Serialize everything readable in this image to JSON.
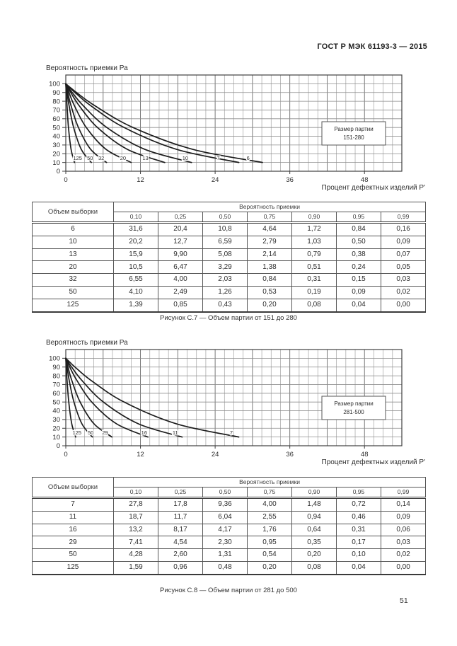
{
  "page": {
    "header": "ГОСТ Р МЭК 61193-3 — 2015",
    "page_number": "51"
  },
  "chart_data": [
    {
      "type": "line",
      "title": "",
      "ylabel": "Вероятность приемки Ра",
      "xlabel": "Процент дефектных изделий Р'",
      "xlim": [
        0,
        54
      ],
      "ylim": [
        0,
        110
      ],
      "x_ticks": [
        0,
        12,
        24,
        36,
        48
      ],
      "y_ticks": [
        0,
        10,
        20,
        30,
        40,
        50,
        60,
        70,
        80,
        90,
        100
      ],
      "x_minor_step": 1.5,
      "y_grid_step": 10,
      "grid": "on",
      "legend": {
        "line1": "Размер партии",
        "line2": "151-280"
      },
      "note": "Operating characteristic curves: x = percent defective P' at given acceptance probability, y = acceptance probability Pa (%); curve name = sample size",
      "series": [
        {
          "name": "125",
          "label_x": 1.9,
          "points": [
            [
              0,
              100
            ],
            [
              0.0,
              99
            ],
            [
              0.04,
              95
            ],
            [
              0.08,
              90
            ],
            [
              0.2,
              75
            ],
            [
              0.43,
              50
            ],
            [
              0.85,
              25
            ],
            [
              1.39,
              10
            ]
          ]
        },
        {
          "name": "50",
          "label_x": 3.9,
          "points": [
            [
              0,
              100
            ],
            [
              0.02,
              99
            ],
            [
              0.09,
              95
            ],
            [
              0.19,
              90
            ],
            [
              0.53,
              75
            ],
            [
              1.26,
              50
            ],
            [
              2.49,
              25
            ],
            [
              4.1,
              10
            ]
          ]
        },
        {
          "name": "32",
          "label_x": 5.7,
          "points": [
            [
              0,
              100
            ],
            [
              0.03,
              99
            ],
            [
              0.15,
              95
            ],
            [
              0.31,
              90
            ],
            [
              0.84,
              75
            ],
            [
              2.03,
              50
            ],
            [
              4.0,
              25
            ],
            [
              6.55,
              10
            ]
          ]
        },
        {
          "name": "20",
          "label_x": 9.2,
          "points": [
            [
              0,
              100
            ],
            [
              0.05,
              99
            ],
            [
              0.24,
              95
            ],
            [
              0.51,
              90
            ],
            [
              1.38,
              75
            ],
            [
              3.29,
              50
            ],
            [
              6.47,
              25
            ],
            [
              10.5,
              10
            ]
          ]
        },
        {
          "name": "13",
          "label_x": 12.8,
          "points": [
            [
              0,
              100
            ],
            [
              0.07,
              99
            ],
            [
              0.38,
              95
            ],
            [
              0.79,
              90
            ],
            [
              2.14,
              75
            ],
            [
              5.08,
              50
            ],
            [
              9.9,
              25
            ],
            [
              15.9,
              10
            ]
          ]
        },
        {
          "name": "10",
          "label_x": 19.2,
          "points": [
            [
              0,
              100
            ],
            [
              0.09,
              99
            ],
            [
              0.5,
              95
            ],
            [
              1.03,
              90
            ],
            [
              2.79,
              75
            ],
            [
              6.59,
              50
            ],
            [
              12.7,
              25
            ],
            [
              20.2,
              10
            ]
          ]
        },
        {
          "name": "7",
          "label_x": 24.5,
          "points": [
            [
              0,
              100
            ],
            [
              0.14,
              99
            ],
            [
              0.72,
              95
            ],
            [
              1.48,
              90
            ],
            [
              4.0,
              75
            ],
            [
              9.36,
              50
            ],
            [
              17.8,
              25
            ],
            [
              27.8,
              10
            ]
          ]
        },
        {
          "name": "6",
          "label_x": 29.3,
          "points": [
            [
              0,
              100
            ],
            [
              0.16,
              99
            ],
            [
              0.84,
              95
            ],
            [
              1.72,
              90
            ],
            [
              4.64,
              75
            ],
            [
              10.8,
              50
            ],
            [
              20.4,
              25
            ],
            [
              31.6,
              10
            ]
          ]
        }
      ]
    },
    {
      "type": "line",
      "title": "",
      "ylabel": "Вероятность приемки Ра",
      "xlabel": "Процент дефектных изделий Р'",
      "xlim": [
        0,
        54
      ],
      "ylim": [
        0,
        110
      ],
      "x_ticks": [
        0,
        12,
        24,
        36,
        48
      ],
      "y_ticks": [
        0,
        10,
        20,
        30,
        40,
        50,
        60,
        70,
        80,
        90,
        100
      ],
      "x_minor_step": 1.5,
      "y_grid_step": 10,
      "grid": "on",
      "legend": {
        "line1": "Размер партии",
        "line2": "281-500"
      },
      "note": "Operating characteristic curves: x = percent defective P' at given acceptance probability, y = acceptance probability Pa (%); curve name = sample size",
      "series": [
        {
          "name": "125",
          "label_x": 1.8,
          "points": [
            [
              0,
              100
            ],
            [
              0.0,
              99
            ],
            [
              0.04,
              95
            ],
            [
              0.08,
              90
            ],
            [
              0.2,
              75
            ],
            [
              0.48,
              50
            ],
            [
              0.96,
              25
            ],
            [
              1.59,
              10
            ]
          ]
        },
        {
          "name": "50",
          "label_x": 4.0,
          "points": [
            [
              0,
              100
            ],
            [
              0.02,
              99
            ],
            [
              0.1,
              95
            ],
            [
              0.2,
              90
            ],
            [
              0.54,
              75
            ],
            [
              1.31,
              50
            ],
            [
              2.6,
              25
            ],
            [
              4.28,
              10
            ]
          ]
        },
        {
          "name": "29",
          "label_x": 6.3,
          "points": [
            [
              0,
              100
            ],
            [
              0.03,
              99
            ],
            [
              0.17,
              95
            ],
            [
              0.35,
              90
            ],
            [
              0.95,
              75
            ],
            [
              2.3,
              50
            ],
            [
              4.54,
              25
            ],
            [
              7.41,
              10
            ]
          ]
        },
        {
          "name": "16",
          "label_x": 12.6,
          "points": [
            [
              0,
              100
            ],
            [
              0.06,
              99
            ],
            [
              0.31,
              95
            ],
            [
              0.64,
              90
            ],
            [
              1.76,
              75
            ],
            [
              4.17,
              50
            ],
            [
              8.17,
              25
            ],
            [
              13.2,
              10
            ]
          ]
        },
        {
          "name": "11",
          "label_x": 17.6,
          "points": [
            [
              0,
              100
            ],
            [
              0.09,
              99
            ],
            [
              0.46,
              95
            ],
            [
              0.94,
              90
            ],
            [
              2.55,
              75
            ],
            [
              6.04,
              50
            ],
            [
              11.7,
              25
            ],
            [
              18.7,
              10
            ]
          ]
        },
        {
          "name": "7",
          "label_x": 26.6,
          "points": [
            [
              0,
              100
            ],
            [
              0.14,
              99
            ],
            [
              0.72,
              95
            ],
            [
              1.48,
              90
            ],
            [
              4.0,
              75
            ],
            [
              9.36,
              50
            ],
            [
              17.8,
              25
            ],
            [
              27.8,
              10
            ]
          ]
        }
      ]
    }
  ],
  "tables": [
    {
      "col1_header": "Объем выборки",
      "group_header": "Вероятность приемки",
      "prob_headers": [
        "0,10",
        "0,25",
        "0,50",
        "0,75",
        "0,90",
        "0,95",
        "0,99"
      ],
      "rows": [
        {
          "n": "6",
          "values": [
            "31,6",
            "20,4",
            "10,8",
            "4,64",
            "1,72",
            "0,84",
            "0,16"
          ]
        },
        {
          "n": "10",
          "values": [
            "20,2",
            "12,7",
            "6,59",
            "2,79",
            "1,03",
            "0,50",
            "0,09"
          ]
        },
        {
          "n": "13",
          "values": [
            "15,9",
            "9,90",
            "5,08",
            "2,14",
            "0,79",
            "0,38",
            "0,07"
          ]
        },
        {
          "n": "20",
          "values": [
            "10,5",
            "6,47",
            "3,29",
            "1,38",
            "0,51",
            "0,24",
            "0,05"
          ]
        },
        {
          "n": "32",
          "values": [
            "6,55",
            "4,00",
            "2,03",
            "0,84",
            "0,31",
            "0,15",
            "0,03"
          ]
        },
        {
          "n": "50",
          "values": [
            "4,10",
            "2,49",
            "1,26",
            "0,53",
            "0,19",
            "0,09",
            "0,02"
          ]
        },
        {
          "n": "125",
          "values": [
            "1,39",
            "0,85",
            "0,43",
            "0,20",
            "0,08",
            "0,04",
            "0,00"
          ]
        }
      ],
      "caption": "Рисунок С.7 — Объем партии от 151 до 280"
    },
    {
      "col1_header": "Объем выборки",
      "group_header": "Вероятность приемки",
      "prob_headers": [
        "0,10",
        "0,25",
        "0,50",
        "0,75",
        "0,90",
        "0,95",
        "0,99"
      ],
      "rows": [
        {
          "n": "7",
          "values": [
            "27,8",
            "17,8",
            "9,36",
            "4,00",
            "1,48",
            "0,72",
            "0,14"
          ]
        },
        {
          "n": "11",
          "values": [
            "18,7",
            "11,7",
            "6,04",
            "2,55",
            "0,94",
            "0,46",
            "0,09"
          ]
        },
        {
          "n": "16",
          "values": [
            "13,2",
            "8,17",
            "4,17",
            "1,76",
            "0,64",
            "0,31",
            "0,06"
          ]
        },
        {
          "n": "29",
          "values": [
            "7,41",
            "4,54",
            "2,30",
            "0,95",
            "0,35",
            "0,17",
            "0,03"
          ]
        },
        {
          "n": "50",
          "values": [
            "4,28",
            "2,60",
            "1,31",
            "0,54",
            "0,20",
            "0,10",
            "0,02"
          ]
        },
        {
          "n": "125",
          "values": [
            "1,59",
            "0,96",
            "0,48",
            "0,20",
            "0,08",
            "0,04",
            "0,00"
          ]
        }
      ],
      "caption": "Рисунок С.8 — Объем партии от 281 до 500"
    }
  ]
}
